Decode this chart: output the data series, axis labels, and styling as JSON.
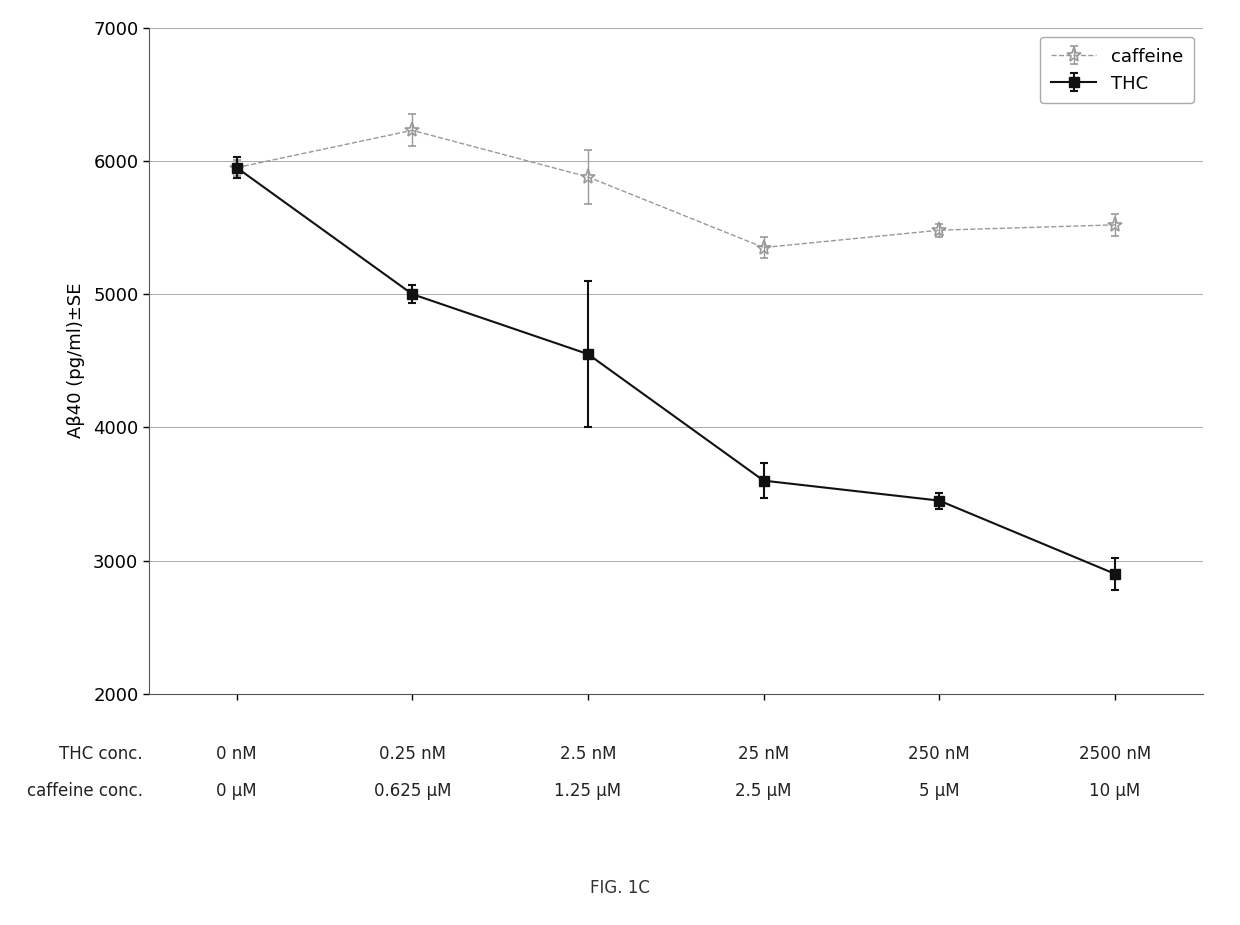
{
  "thc_values": [
    5950,
    5000,
    4550,
    3600,
    3450,
    2900
  ],
  "thc_errors": [
    80,
    70,
    550,
    130,
    60,
    120
  ],
  "caffeine_values": [
    5950,
    6230,
    5880,
    5350,
    5480,
    5520
  ],
  "caffeine_errors": [
    60,
    120,
    200,
    80,
    50,
    80
  ],
  "x_positions": [
    0,
    1,
    2,
    3,
    4,
    5
  ],
  "thc_line_color": "#111111",
  "caffeine_line_color": "#999999",
  "marker_thc": "s",
  "marker_caffeine": "*",
  "xlabel_thc": [
    "0 nM",
    "0.25 nM",
    "2.5 nM",
    "25 nM",
    "250 nM",
    "2500 nM"
  ],
  "xlabel_caffeine": [
    "0 μM",
    "0.625 μM",
    "1.25 μM",
    "2.5 μM",
    "5 μM",
    "10 μM"
  ],
  "ylabel": "Aβ40 (pg/ml)±SE",
  "ylim": [
    2000,
    7000
  ],
  "yticks": [
    2000,
    3000,
    4000,
    5000,
    6000,
    7000
  ],
  "title": "FIG. 1C",
  "legend_caffeine": "caffeine",
  "legend_thc": "THC",
  "grid_color": "#aaaaaa",
  "background_color": "#ffffff",
  "label_thc_row": "THC conc.",
  "label_caffeine_row": "caffeine conc.",
  "label_fontsize": 12,
  "tick_fontsize": 13,
  "ylabel_fontsize": 13,
  "title_fontsize": 12,
  "legend_fontsize": 13
}
